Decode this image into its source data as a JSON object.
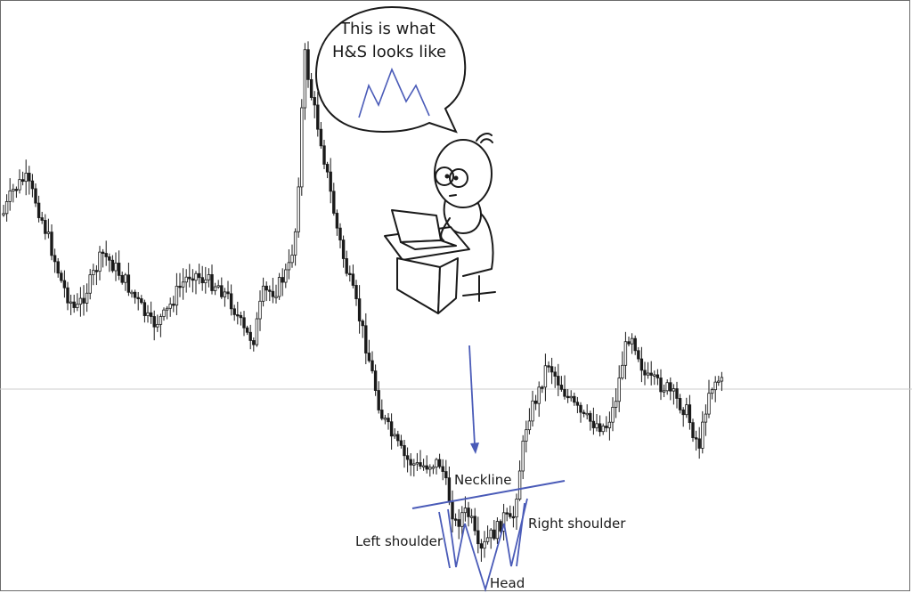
{
  "chart_data": {
    "type": "candlestick",
    "title": "",
    "xlabel": "",
    "ylabel": "",
    "grid": false,
    "reference_line": {
      "value": 437
    },
    "series": [
      {
        "name": "",
        "seed": 7,
        "waypoints": [
          [
            4,
            240
          ],
          [
            14,
            215
          ],
          [
            28,
            200
          ],
          [
            40,
            225
          ],
          [
            55,
            270
          ],
          [
            70,
            320
          ],
          [
            85,
            350
          ],
          [
            100,
            320
          ],
          [
            115,
            285
          ],
          [
            125,
            295
          ],
          [
            140,
            315
          ],
          [
            155,
            340
          ],
          [
            170,
            365
          ],
          [
            185,
            355
          ],
          [
            200,
            325
          ],
          [
            215,
            305
          ],
          [
            230,
            315
          ],
          [
            245,
            320
          ],
          [
            260,
            340
          ],
          [
            275,
            375
          ],
          [
            285,
            380
          ],
          [
            295,
            330
          ],
          [
            310,
            325
          ],
          [
            325,
            300
          ],
          [
            333,
            250
          ],
          [
            338,
            140
          ],
          [
            342,
            60
          ],
          [
            350,
            110
          ],
          [
            360,
            155
          ],
          [
            368,
            200
          ],
          [
            378,
            255
          ],
          [
            388,
            300
          ],
          [
            398,
            335
          ],
          [
            408,
            375
          ],
          [
            418,
            420
          ],
          [
            428,
            465
          ],
          [
            440,
            490
          ],
          [
            455,
            515
          ],
          [
            470,
            525
          ],
          [
            485,
            520
          ],
          [
            495,
            520
          ],
          [
            503,
            555
          ],
          [
            512,
            590
          ],
          [
            520,
            575
          ],
          [
            528,
            580
          ],
          [
            538,
            625
          ],
          [
            548,
            605
          ],
          [
            558,
            595
          ],
          [
            566,
            580
          ],
          [
            575,
            590
          ],
          [
            583,
            530
          ],
          [
            592,
            470
          ],
          [
            605,
            440
          ],
          [
            615,
            405
          ],
          [
            625,
            425
          ],
          [
            640,
            450
          ],
          [
            655,
            470
          ],
          [
            668,
            475
          ],
          [
            680,
            480
          ],
          [
            690,
            455
          ],
          [
            700,
            400
          ],
          [
            708,
            370
          ],
          [
            716,
            395
          ],
          [
            725,
            425
          ],
          [
            735,
            430
          ],
          [
            748,
            435
          ],
          [
            760,
            450
          ],
          [
            770,
            460
          ],
          [
            780,
            490
          ],
          [
            786,
            500
          ],
          [
            795,
            440
          ],
          [
            805,
            425
          ],
          [
            812,
            432
          ]
        ]
      }
    ],
    "annotations": {
      "bubble_line1": "This is what",
      "bubble_line2": "H&S looks like",
      "neckline": "Neckline",
      "left_shoulder": "Left shoulder",
      "right_shoulder": "Right shoulder",
      "head": "Head"
    },
    "colors": {
      "candles": "#1a1a1a",
      "pattern": "#4a5bb8",
      "reference_line": "#cccccc",
      "frame": "#6b6b6b"
    }
  }
}
